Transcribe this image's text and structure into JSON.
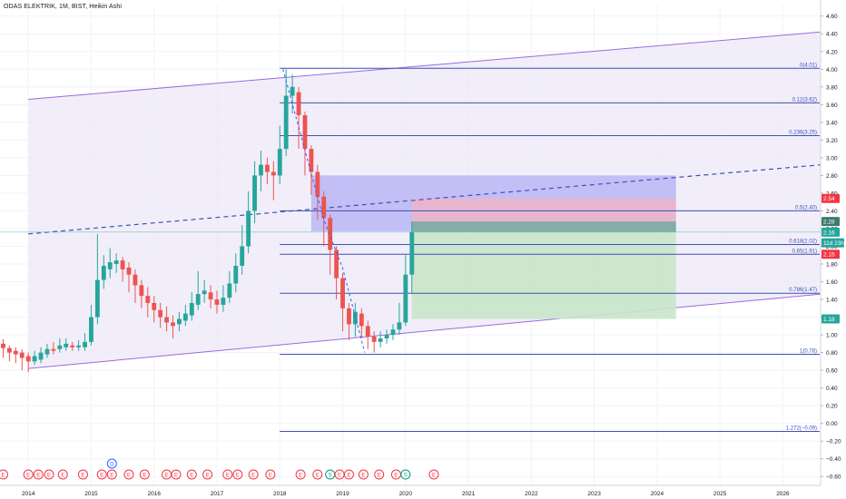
{
  "header": {
    "title": "ODAS ELEKTRIK, 1M, BIST, Heikin Ashi"
  },
  "chart_data": {
    "type": "candlestick",
    "title": "ODAS ELEKTRIK, 1M, BIST, Heikin Ashi",
    "y_axis_ticks": [
      "4.60",
      "4.40",
      "4.20",
      "4.00",
      "3.80",
      "3.60",
      "3.40",
      "3.20",
      "3.00",
      "2.80",
      "2.60",
      "2.40",
      "2.20",
      "2.00",
      "1.80",
      "1.60",
      "1.40",
      "1.20",
      "1.00",
      "0.80",
      "0.60",
      "0.40",
      "0.20",
      "0.00",
      "−0.20",
      "−0.40",
      "−0.60"
    ],
    "ylim": [
      -0.7,
      4.72
    ],
    "x_axis_ticks": [
      "2014",
      "2015",
      "2016",
      "2017",
      "2018",
      "2019",
      "2020",
      "2021",
      "2022",
      "2023",
      "2024",
      "2025",
      "2026"
    ],
    "x_tick_years": [
      2014,
      2015,
      2016,
      2017,
      2018,
      2019,
      2020,
      2021,
      2022,
      2023,
      2024,
      2025,
      2026
    ],
    "xlim": [
      2013.55,
      2026.6
    ],
    "price_badges": [
      {
        "label": "2.54",
        "value": 2.54,
        "color": "#f23645"
      },
      {
        "label": "2.28",
        "value": 2.28,
        "color": "#3d7a6f"
      },
      {
        "label": "2.16",
        "value": 2.16,
        "color": "#26a69a"
      },
      {
        "label": "11d 23h",
        "value": 2.04,
        "color": "#26a69a"
      },
      {
        "label": "2.15",
        "value": 1.91,
        "color": "#f23645"
      },
      {
        "label": "1.18",
        "value": 1.18,
        "color": "#26a69a"
      }
    ],
    "fib_levels": [
      {
        "label": "0(4.01)",
        "value": 4.01
      },
      {
        "label": "0.12(3.62)",
        "value": 3.62
      },
      {
        "label": "0.236(3.25)",
        "value": 3.25
      },
      {
        "label": "0.5(2.40)",
        "value": 2.4
      },
      {
        "label": "0.618(2.02)",
        "value": 2.02
      },
      {
        "label": "0.65(1.91)",
        "value": 1.91
      },
      {
        "label": "0.786(1.47)",
        "value": 1.47
      },
      {
        "label": "1(0.78)",
        "value": 0.78
      },
      {
        "label": "1.272(−0.09)",
        "value": -0.09
      }
    ],
    "fib_start_year": 2018.0,
    "channel": {
      "upper": [
        [
          2014.0,
          3.66
        ],
        [
          2026.6,
          4.42
        ]
      ],
      "lower": [
        [
          2014.0,
          0.62
        ],
        [
          2026.6,
          1.46
        ]
      ]
    },
    "midline": [
      [
        2014.0,
        2.14
      ],
      [
        2026.6,
        2.92
      ]
    ],
    "long_position": {
      "x_start": 2020.1,
      "x_end": 2024.3,
      "entry": 2.28,
      "entry_upper": 2.16,
      "stop": 2.54,
      "target": 1.18
    },
    "highlight_box": {
      "x_start": 2018.5,
      "x_end": 2024.3,
      "top": 2.8,
      "bottom": 2.17
    },
    "candles": [
      {
        "t": 2013.6,
        "o": 0.9,
        "c": 0.85,
        "h": 0.95,
        "l": 0.74
      },
      {
        "t": 2013.7,
        "o": 0.85,
        "c": 0.8,
        "h": 0.88,
        "l": 0.7
      },
      {
        "t": 2013.8,
        "o": 0.82,
        "c": 0.78,
        "h": 0.86,
        "l": 0.68
      },
      {
        "t": 2013.9,
        "o": 0.8,
        "c": 0.74,
        "h": 0.84,
        "l": 0.6
      },
      {
        "t": 2014.0,
        "o": 0.76,
        "c": 0.7,
        "h": 0.8,
        "l": 0.58
      },
      {
        "t": 2014.1,
        "o": 0.7,
        "c": 0.76,
        "h": 0.82,
        "l": 0.66
      },
      {
        "t": 2014.2,
        "o": 0.72,
        "c": 0.8,
        "h": 0.86,
        "l": 0.68
      },
      {
        "t": 2014.3,
        "o": 0.78,
        "c": 0.84,
        "h": 0.9,
        "l": 0.74
      },
      {
        "t": 2014.4,
        "o": 0.84,
        "c": 0.82,
        "h": 0.92,
        "l": 0.78
      },
      {
        "t": 2014.5,
        "o": 0.84,
        "c": 0.88,
        "h": 0.96,
        "l": 0.8
      },
      {
        "t": 2014.6,
        "o": 0.86,
        "c": 0.9,
        "h": 0.96,
        "l": 0.82
      },
      {
        "t": 2014.7,
        "o": 0.88,
        "c": 0.86,
        "h": 0.92,
        "l": 0.82
      },
      {
        "t": 2014.8,
        "o": 0.86,
        "c": 0.88,
        "h": 0.94,
        "l": 0.82
      },
      {
        "t": 2014.9,
        "o": 0.86,
        "c": 0.92,
        "h": 1.02,
        "l": 0.82
      },
      {
        "t": 2015.0,
        "o": 0.92,
        "c": 1.2,
        "h": 1.34,
        "l": 0.88
      },
      {
        "t": 2015.1,
        "o": 1.2,
        "c": 1.62,
        "h": 2.14,
        "l": 1.12
      },
      {
        "t": 2015.2,
        "o": 1.62,
        "c": 1.78,
        "h": 1.9,
        "l": 1.52
      },
      {
        "t": 2015.3,
        "o": 1.74,
        "c": 1.82,
        "h": 1.98,
        "l": 1.64
      },
      {
        "t": 2015.4,
        "o": 1.8,
        "c": 1.84,
        "h": 1.92,
        "l": 1.7
      },
      {
        "t": 2015.5,
        "o": 1.84,
        "c": 1.74,
        "h": 1.88,
        "l": 1.6
      },
      {
        "t": 2015.6,
        "o": 1.76,
        "c": 1.68,
        "h": 1.82,
        "l": 1.48
      },
      {
        "t": 2015.7,
        "o": 1.68,
        "c": 1.56,
        "h": 1.74,
        "l": 1.36
      },
      {
        "t": 2015.8,
        "o": 1.56,
        "c": 1.44,
        "h": 1.62,
        "l": 1.3
      },
      {
        "t": 2015.9,
        "o": 1.44,
        "c": 1.36,
        "h": 1.54,
        "l": 1.2
      },
      {
        "t": 2016.0,
        "o": 1.36,
        "c": 1.28,
        "h": 1.44,
        "l": 1.14
      },
      {
        "t": 2016.1,
        "o": 1.28,
        "c": 1.2,
        "h": 1.36,
        "l": 1.08
      },
      {
        "t": 2016.2,
        "o": 1.2,
        "c": 1.14,
        "h": 1.32,
        "l": 1.04
      },
      {
        "t": 2016.3,
        "o": 1.14,
        "c": 1.1,
        "h": 1.22,
        "l": 0.96
      },
      {
        "t": 2016.4,
        "o": 1.12,
        "c": 1.18,
        "h": 1.26,
        "l": 1.04
      },
      {
        "t": 2016.5,
        "o": 1.16,
        "c": 1.24,
        "h": 1.34,
        "l": 1.1
      },
      {
        "t": 2016.6,
        "o": 1.22,
        "c": 1.36,
        "h": 1.48,
        "l": 1.16
      },
      {
        "t": 2016.7,
        "o": 1.34,
        "c": 1.46,
        "h": 1.72,
        "l": 1.28
      },
      {
        "t": 2016.8,
        "o": 1.46,
        "c": 1.5,
        "h": 1.62,
        "l": 1.36
      },
      {
        "t": 2016.9,
        "o": 1.48,
        "c": 1.4,
        "h": 1.56,
        "l": 1.3
      },
      {
        "t": 2017.0,
        "o": 1.4,
        "c": 1.34,
        "h": 1.5,
        "l": 1.24
      },
      {
        "t": 2017.1,
        "o": 1.34,
        "c": 1.42,
        "h": 1.56,
        "l": 1.26
      },
      {
        "t": 2017.2,
        "o": 1.42,
        "c": 1.58,
        "h": 1.72,
        "l": 1.36
      },
      {
        "t": 2017.3,
        "o": 1.58,
        "c": 1.78,
        "h": 1.92,
        "l": 1.48
      },
      {
        "t": 2017.4,
        "o": 1.78,
        "c": 2.0,
        "h": 2.24,
        "l": 1.68
      },
      {
        "t": 2017.5,
        "o": 2.0,
        "c": 2.4,
        "h": 2.62,
        "l": 1.92
      },
      {
        "t": 2017.6,
        "o": 2.4,
        "c": 2.8,
        "h": 2.96,
        "l": 2.26
      },
      {
        "t": 2017.7,
        "o": 2.8,
        "c": 2.92,
        "h": 3.08,
        "l": 2.62
      },
      {
        "t": 2017.8,
        "o": 2.92,
        "c": 2.84,
        "h": 3.0,
        "l": 2.7
      },
      {
        "t": 2017.9,
        "o": 2.84,
        "c": 2.8,
        "h": 2.96,
        "l": 2.52
      },
      {
        "t": 2018.0,
        "o": 2.8,
        "c": 3.1,
        "h": 3.36,
        "l": 2.7
      },
      {
        "t": 2018.1,
        "o": 3.1,
        "c": 3.7,
        "h": 4.0,
        "l": 3.02
      },
      {
        "t": 2018.2,
        "o": 3.7,
        "c": 3.8,
        "h": 3.94,
        "l": 3.5
      },
      {
        "t": 2018.3,
        "o": 3.74,
        "c": 3.48,
        "h": 3.8,
        "l": 3.1
      },
      {
        "t": 2018.4,
        "o": 3.48,
        "c": 3.1,
        "h": 3.52,
        "l": 2.8
      },
      {
        "t": 2018.5,
        "o": 3.1,
        "c": 2.84,
        "h": 3.14,
        "l": 2.58
      },
      {
        "t": 2018.6,
        "o": 2.84,
        "c": 2.56,
        "h": 2.92,
        "l": 2.3
      },
      {
        "t": 2018.7,
        "o": 2.56,
        "c": 2.32,
        "h": 2.62,
        "l": 2.0
      },
      {
        "t": 2018.8,
        "o": 2.32,
        "c": 1.96,
        "h": 2.36,
        "l": 1.68
      },
      {
        "t": 2018.9,
        "o": 1.96,
        "c": 1.64,
        "h": 2.0,
        "l": 1.4
      },
      {
        "t": 2019.0,
        "o": 1.64,
        "c": 1.3,
        "h": 1.7,
        "l": 1.04
      },
      {
        "t": 2019.1,
        "o": 1.3,
        "c": 1.12,
        "h": 1.36,
        "l": 0.94
      },
      {
        "t": 2019.2,
        "o": 1.12,
        "c": 1.26,
        "h": 1.36,
        "l": 0.98
      },
      {
        "t": 2019.3,
        "o": 1.24,
        "c": 1.1,
        "h": 1.3,
        "l": 0.96
      },
      {
        "t": 2019.4,
        "o": 1.1,
        "c": 0.98,
        "h": 1.16,
        "l": 0.84
      },
      {
        "t": 2019.5,
        "o": 0.98,
        "c": 0.92,
        "h": 1.04,
        "l": 0.8
      },
      {
        "t": 2019.6,
        "o": 0.92,
        "c": 0.96,
        "h": 1.04,
        "l": 0.86
      },
      {
        "t": 2019.7,
        "o": 0.96,
        "c": 1.0,
        "h": 1.06,
        "l": 0.9
      },
      {
        "t": 2019.8,
        "o": 1.0,
        "c": 1.06,
        "h": 1.12,
        "l": 0.94
      },
      {
        "t": 2019.9,
        "o": 1.06,
        "c": 1.14,
        "h": 1.36,
        "l": 1.0
      },
      {
        "t": 2020.0,
        "o": 1.14,
        "c": 1.68,
        "h": 1.9,
        "l": 1.1
      },
      {
        "t": 2020.1,
        "o": 1.68,
        "c": 2.16,
        "h": 2.28,
        "l": 1.46
      }
    ],
    "event_markers": [
      {
        "t": 2013.6,
        "label": "E",
        "color": "#f23645"
      },
      {
        "t": 2014.0,
        "label": "E",
        "color": "#f23645"
      },
      {
        "t": 2014.16,
        "label": "E",
        "color": "#f23645"
      },
      {
        "t": 2014.33,
        "label": "E",
        "color": "#f23645"
      },
      {
        "t": 2014.55,
        "label": "E",
        "color": "#f23645"
      },
      {
        "t": 2014.87,
        "label": "E",
        "color": "#f23645"
      },
      {
        "t": 2015.17,
        "label": "E",
        "color": "#f23645"
      },
      {
        "t": 2015.33,
        "label": "E",
        "color": "#f23645"
      },
      {
        "t": 2015.6,
        "label": "E",
        "color": "#f23645"
      },
      {
        "t": 2015.85,
        "label": "E",
        "color": "#f23645"
      },
      {
        "t": 2016.2,
        "label": "E",
        "color": "#f23645"
      },
      {
        "t": 2016.35,
        "label": "E",
        "color": "#f23645"
      },
      {
        "t": 2016.6,
        "label": "E",
        "color": "#f23645"
      },
      {
        "t": 2016.85,
        "label": "E",
        "color": "#f23645"
      },
      {
        "t": 2017.17,
        "label": "E",
        "color": "#f23645"
      },
      {
        "t": 2017.33,
        "label": "E",
        "color": "#f23645"
      },
      {
        "t": 2017.58,
        "label": "E",
        "color": "#f23645"
      },
      {
        "t": 2017.85,
        "label": "E",
        "color": "#f23645"
      },
      {
        "t": 2018.33,
        "label": "E",
        "color": "#f23645"
      },
      {
        "t": 2018.6,
        "label": "E",
        "color": "#f23645"
      },
      {
        "t": 2018.8,
        "label": "S",
        "color": "#089981"
      },
      {
        "t": 2018.95,
        "label": "E",
        "color": "#f23645"
      },
      {
        "t": 2019.1,
        "label": "E",
        "color": "#f23645"
      },
      {
        "t": 2019.33,
        "label": "E",
        "color": "#f23645"
      },
      {
        "t": 2019.58,
        "label": "E",
        "color": "#f23645"
      },
      {
        "t": 2019.85,
        "label": "E",
        "color": "#f23645"
      },
      {
        "t": 2020.0,
        "label": "S",
        "color": "#089981"
      },
      {
        "t": 2020.45,
        "label": "E",
        "color": "#f23645"
      }
    ],
    "dividend_marker": {
      "t": 2015.33,
      "label": "D",
      "color": "#2962ff"
    },
    "colors": {
      "up": "#26a69a",
      "down": "#ef5350",
      "fib": "#3f51b5",
      "channel": "#9c6ade",
      "channel_fill": "#ece8f7",
      "profit_fill": "#c8e6c9",
      "loss_fill": "#f2b3c4",
      "highlight_fill": "#a9a4f5",
      "axis_text": "#131722",
      "grid": "#f0f3fa"
    }
  }
}
